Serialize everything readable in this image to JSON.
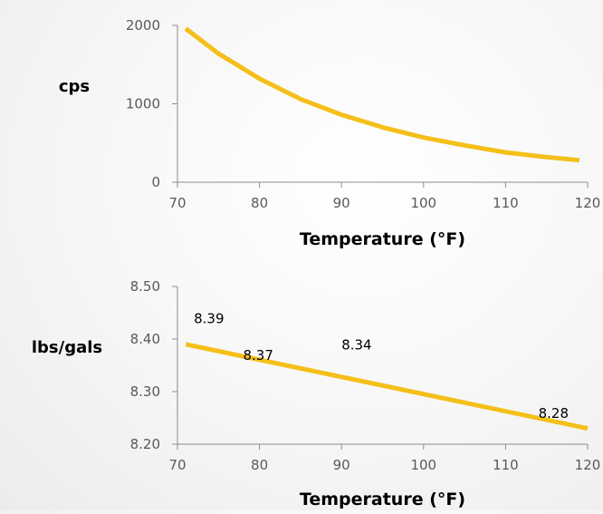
{
  "colors": {
    "series": "#f5bf1a",
    "axis": "#8c8c8c",
    "tick": "#595959"
  },
  "chart_data": [
    {
      "type": "line",
      "xlabel": "Temperature (°F)",
      "ylabel": "cps",
      "xlim": [
        70,
        120
      ],
      "ylim": [
        0,
        2000
      ],
      "xticks": [
        "70",
        "80",
        "90",
        "100",
        "110",
        "120"
      ],
      "yticks": [
        "0",
        "1000",
        "2000"
      ],
      "grid": false,
      "series": [
        {
          "x": [
            71,
            75,
            80,
            85,
            90,
            95,
            100,
            105,
            110,
            115,
            119
          ],
          "values": [
            1960,
            1640,
            1320,
            1060,
            860,
            700,
            570,
            470,
            380,
            320,
            280
          ]
        }
      ]
    },
    {
      "type": "line",
      "xlabel": "Temperature (°F)",
      "ylabel": "lbs/gals",
      "xlim": [
        70,
        120
      ],
      "ylim": [
        8.2,
        8.5
      ],
      "xticks": [
        "70",
        "80",
        "90",
        "100",
        "110",
        "120"
      ],
      "yticks": [
        "8.20",
        "8.30",
        "8.40",
        "8.50"
      ],
      "grid": false,
      "series": [
        {
          "x": [
            71,
            120
          ],
          "values": [
            8.39,
            8.23
          ]
        }
      ],
      "annotations": [
        {
          "text": "8.39",
          "x": 72,
          "y": 8.43
        },
        {
          "text": "8.37",
          "x": 78,
          "y": 8.36
        },
        {
          "text": "8.34",
          "x": 90,
          "y": 8.38
        },
        {
          "text": "8.28",
          "x": 114,
          "y": 8.25
        }
      ]
    }
  ]
}
